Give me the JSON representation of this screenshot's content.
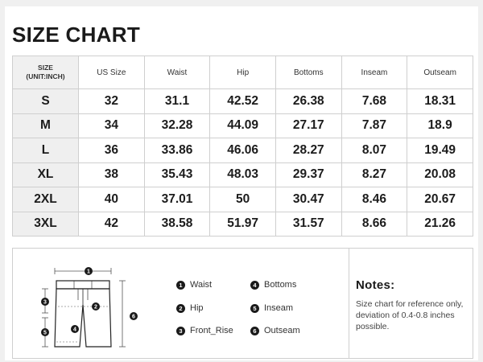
{
  "title": "SIZE CHART",
  "table": {
    "unit_header_line1": "SIZE",
    "unit_header_line2": "(UNIT:INCH)",
    "columns": [
      "US Size",
      "Waist",
      "Hip",
      "Bottoms",
      "Inseam",
      "Outseam"
    ],
    "rows": [
      {
        "size": "S",
        "values": [
          "32",
          "31.1",
          "42.52",
          "26.38",
          "7.68",
          "18.31"
        ]
      },
      {
        "size": "M",
        "values": [
          "34",
          "32.28",
          "44.09",
          "27.17",
          "7.87",
          "18.9"
        ]
      },
      {
        "size": "L",
        "values": [
          "36",
          "33.86",
          "46.06",
          "28.27",
          "8.07",
          "19.49"
        ]
      },
      {
        "size": "XL",
        "values": [
          "38",
          "35.43",
          "48.03",
          "29.37",
          "8.27",
          "20.08"
        ]
      },
      {
        "size": "2XL",
        "values": [
          "40",
          "37.01",
          "50",
          "30.47",
          "8.46",
          "20.67"
        ]
      },
      {
        "size": "3XL",
        "values": [
          "42",
          "38.58",
          "51.97",
          "31.57",
          "8.66",
          "21.26"
        ]
      }
    ]
  },
  "legend": [
    {
      "num": "1",
      "label": "Waist"
    },
    {
      "num": "2",
      "label": "Hip"
    },
    {
      "num": "3",
      "label": "Front_Rise"
    },
    {
      "num": "4",
      "label": "Bottoms"
    },
    {
      "num": "5",
      "label": "Inseam"
    },
    {
      "num": "6",
      "label": "Outseam"
    }
  ],
  "diagram_markers": [
    "1",
    "2",
    "3",
    "4",
    "5",
    "6"
  ],
  "notes": {
    "title": "Notes:",
    "text": "Size chart for reference only, deviation of 0.4-0.8 inches possible."
  },
  "icons": {
    "diagram": "shorts-measurement-diagram-icon"
  }
}
